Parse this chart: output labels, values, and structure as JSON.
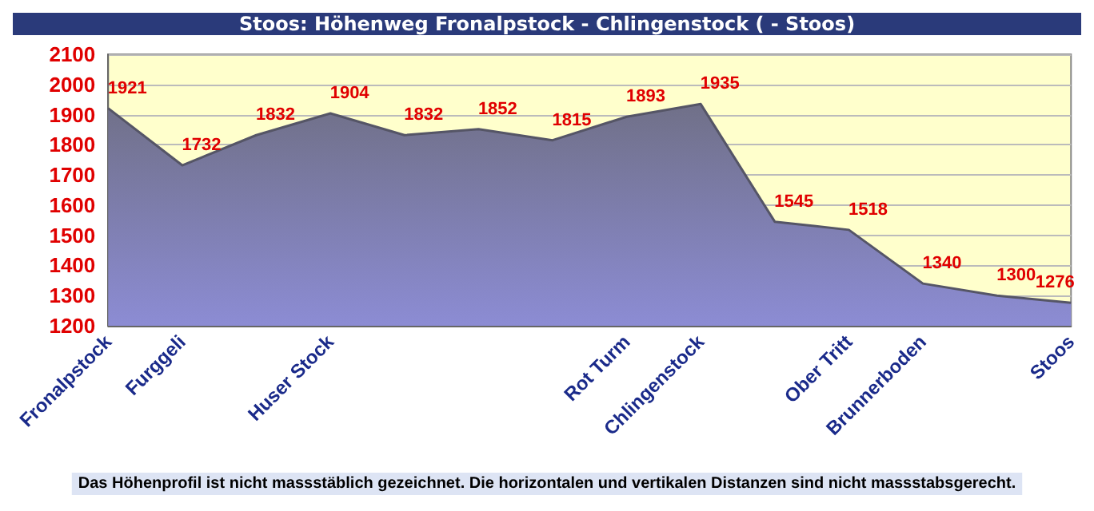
{
  "chart_data": {
    "type": "area",
    "title": "Stoos: Höhenweg Fronalpstock - Chlingenstock ( - Stoos)",
    "categories": [
      "Fronalpstock",
      "Furggeli",
      null,
      "Huser Stock",
      null,
      null,
      null,
      "Rot Turm",
      "Chlingenstock",
      null,
      "Ober Tritt",
      "Brunnerboden",
      null,
      "Stoos"
    ],
    "series": [
      {
        "color": "#8c8cd4",
        "values": [
          1921,
          1732,
          1832,
          1904,
          1832,
          1852,
          1815,
          1893,
          1935,
          1545,
          1518,
          1340,
          1300,
          1276
        ]
      }
    ],
    "ylim": [
      1200,
      2100
    ],
    "yticks": [
      1200,
      1300,
      1400,
      1500,
      1600,
      1700,
      1800,
      1900,
      2000,
      2100
    ],
    "grid": "y",
    "data_labels": true,
    "annotations": [
      "Das Höhenprofil ist nicht massstäblich gezeichnet. Die horizontalen und vertikalen Distanzen sind nicht massstabsgerecht."
    ]
  }
}
